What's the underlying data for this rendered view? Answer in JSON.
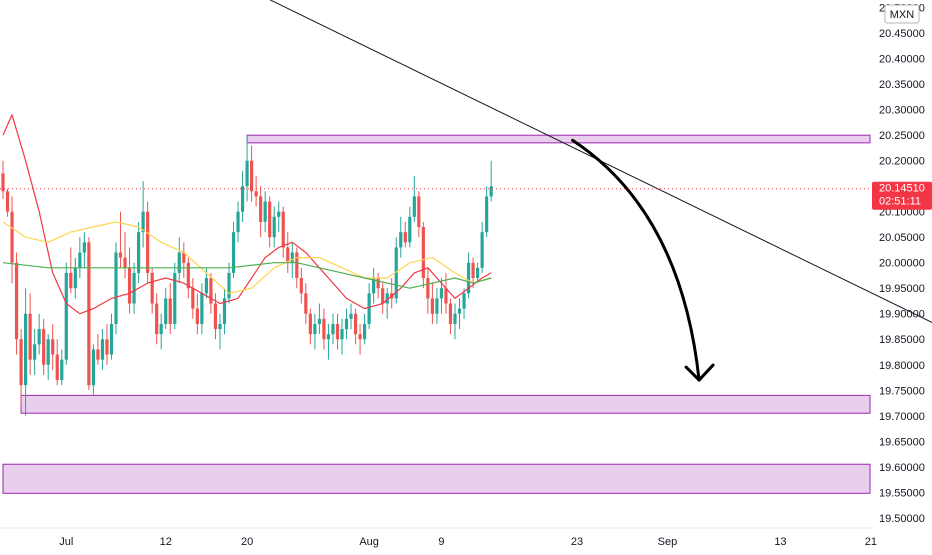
{
  "chart_data": {
    "type": "candlestick",
    "currency": "MXN",
    "ylim": [
      19.48,
      20.515
    ],
    "y_ticks": [
      "19.50000",
      "19.55000",
      "19.60000",
      "19.65000",
      "19.70000",
      "19.75000",
      "19.80000",
      "19.85000",
      "19.90000",
      "19.95000",
      "20.00000",
      "20.05000",
      "20.10000",
      "20.15000",
      "20.20000",
      "20.25000",
      "20.30000",
      "20.35000",
      "20.40000",
      "20.45000",
      "20.50000"
    ],
    "x_labels": [
      {
        "label": "Jul",
        "bar": 14
      },
      {
        "label": "12",
        "bar": 36
      },
      {
        "label": "20",
        "bar": 54
      },
      {
        "label": "Aug",
        "bar": 81
      },
      {
        "label": "9",
        "bar": 97
      },
      {
        "label": "23",
        "bar": 127
      },
      {
        "label": "Sep",
        "bar": 147
      },
      {
        "label": "13",
        "bar": 172
      },
      {
        "label": "21",
        "bar": 192
      }
    ],
    "last_price": {
      "value": 20.1451,
      "label": "20.14510",
      "countdown": "02:51:11"
    },
    "colors": {
      "up": "#26a69a",
      "down": "#ef5350",
      "zone_fill": "#e1bee7",
      "zone_border": "#9c27b0",
      "ma_fast": "#f23645",
      "ma_mid": "#ffd54f",
      "ma_slow": "#4caf50",
      "trendline": "#131722",
      "badge": "#f23645"
    },
    "ohlc": [
      [
        20.175,
        20.2,
        20.125,
        20.14
      ],
      [
        20.14,
        20.145,
        20.09,
        20.1
      ],
      [
        20.1,
        20.13,
        19.96,
        20.0
      ],
      [
        20.0,
        20.02,
        19.82,
        19.85
      ],
      [
        19.85,
        19.87,
        19.72,
        19.76
      ],
      [
        19.76,
        19.95,
        19.7,
        19.9
      ],
      [
        19.9,
        19.94,
        19.78,
        19.81
      ],
      [
        19.81,
        19.87,
        19.78,
        19.84
      ],
      [
        19.84,
        19.9,
        19.82,
        19.87
      ],
      [
        19.87,
        19.89,
        19.78,
        19.8
      ],
      [
        19.8,
        19.86,
        19.77,
        19.85
      ],
      [
        19.85,
        19.88,
        19.79,
        19.82
      ],
      [
        19.82,
        19.85,
        19.76,
        19.77
      ],
      [
        19.77,
        19.83,
        19.76,
        19.81
      ],
      [
        19.81,
        20.0,
        19.8,
        19.98
      ],
      [
        19.98,
        20.03,
        19.94,
        19.95
      ],
      [
        19.95,
        20.01,
        19.93,
        19.99
      ],
      [
        19.99,
        20.05,
        19.97,
        20.02
      ],
      [
        20.02,
        20.06,
        19.99,
        20.04
      ],
      [
        20.04,
        20.05,
        19.75,
        19.76
      ],
      [
        19.76,
        19.84,
        19.74,
        19.83
      ],
      [
        19.83,
        19.86,
        19.8,
        19.81
      ],
      [
        19.81,
        19.87,
        19.79,
        19.85
      ],
      [
        19.85,
        19.88,
        19.8,
        19.82
      ],
      [
        19.82,
        19.9,
        19.81,
        19.88
      ],
      [
        19.88,
        20.04,
        19.86,
        20.02
      ],
      [
        20.02,
        20.1,
        19.99,
        20.01
      ],
      [
        20.01,
        20.06,
        19.97,
        19.99
      ],
      [
        19.99,
        20.03,
        19.9,
        19.92
      ],
      [
        19.92,
        20.0,
        19.9,
        19.98
      ],
      [
        19.98,
        20.08,
        19.96,
        20.06
      ],
      [
        20.06,
        20.16,
        20.03,
        20.1
      ],
      [
        20.1,
        20.12,
        19.96,
        19.98
      ],
      [
        19.98,
        19.99,
        19.9,
        19.92
      ],
      [
        19.92,
        19.94,
        19.84,
        19.86
      ],
      [
        19.86,
        19.9,
        19.83,
        19.88
      ],
      [
        19.88,
        19.95,
        19.87,
        19.93
      ],
      [
        19.93,
        19.96,
        19.86,
        19.88
      ],
      [
        19.88,
        20.0,
        19.87,
        19.98
      ],
      [
        19.98,
        20.05,
        19.96,
        20.02
      ],
      [
        20.02,
        20.04,
        19.97,
        20.0
      ],
      [
        20.0,
        20.01,
        19.93,
        19.95
      ],
      [
        19.95,
        19.97,
        19.89,
        19.91
      ],
      [
        19.91,
        19.94,
        19.86,
        19.88
      ],
      [
        19.88,
        19.96,
        19.86,
        19.94
      ],
      [
        19.94,
        19.99,
        19.93,
        19.97
      ],
      [
        19.97,
        19.98,
        19.9,
        19.92
      ],
      [
        19.92,
        19.94,
        19.85,
        19.87
      ],
      [
        19.87,
        19.9,
        19.83,
        19.88
      ],
      [
        19.88,
        19.95,
        19.86,
        19.93
      ],
      [
        19.93,
        20.0,
        19.92,
        19.98
      ],
      [
        19.98,
        20.08,
        19.97,
        20.06
      ],
      [
        20.06,
        20.12,
        20.04,
        20.1
      ],
      [
        20.1,
        20.18,
        20.08,
        20.15
      ],
      [
        20.15,
        20.25,
        20.12,
        20.2
      ],
      [
        20.2,
        20.23,
        20.12,
        20.14
      ],
      [
        20.14,
        20.17,
        20.11,
        20.13
      ],
      [
        20.13,
        20.15,
        20.05,
        20.08
      ],
      [
        20.08,
        20.14,
        20.06,
        20.12
      ],
      [
        20.12,
        20.13,
        20.03,
        20.05
      ],
      [
        20.05,
        20.11,
        20.03,
        20.09
      ],
      [
        20.09,
        20.12,
        20.06,
        20.1
      ],
      [
        20.1,
        20.11,
        20.01,
        20.03
      ],
      [
        20.03,
        20.06,
        19.98,
        20.0
      ],
      [
        20.0,
        20.04,
        19.97,
        20.02
      ],
      [
        20.02,
        20.03,
        19.95,
        19.97
      ],
      [
        19.97,
        19.99,
        19.92,
        19.94
      ],
      [
        19.94,
        19.96,
        19.88,
        19.9
      ],
      [
        19.9,
        19.91,
        19.84,
        19.86
      ],
      [
        19.86,
        19.9,
        19.83,
        19.88
      ],
      [
        19.88,
        19.92,
        19.86,
        19.89
      ],
      [
        19.89,
        19.91,
        19.83,
        19.85
      ],
      [
        19.85,
        19.88,
        19.81,
        19.86
      ],
      [
        19.86,
        19.9,
        19.84,
        19.88
      ],
      [
        19.88,
        19.9,
        19.83,
        19.85
      ],
      [
        19.85,
        19.89,
        19.82,
        19.87
      ],
      [
        19.87,
        19.91,
        19.85,
        19.89
      ],
      [
        19.89,
        19.92,
        19.87,
        19.9
      ],
      [
        19.9,
        19.91,
        19.84,
        19.86
      ],
      [
        19.86,
        19.88,
        19.82,
        19.85
      ],
      [
        19.85,
        19.9,
        19.84,
        19.88
      ],
      [
        19.88,
        19.96,
        19.87,
        19.94
      ],
      [
        19.94,
        19.99,
        19.92,
        19.97
      ],
      [
        19.97,
        19.98,
        19.93,
        19.95
      ],
      [
        19.95,
        19.96,
        19.9,
        19.92
      ],
      [
        19.92,
        19.95,
        19.89,
        19.94
      ],
      [
        19.94,
        19.97,
        19.91,
        19.93
      ],
      [
        19.93,
        20.05,
        19.92,
        20.03
      ],
      [
        20.03,
        20.09,
        20.01,
        20.06
      ],
      [
        20.06,
        20.08,
        20.03,
        20.04
      ],
      [
        20.04,
        20.11,
        20.03,
        20.09
      ],
      [
        20.09,
        20.17,
        20.08,
        20.13
      ],
      [
        20.13,
        20.14,
        20.05,
        20.07
      ],
      [
        20.07,
        20.08,
        19.95,
        19.97
      ],
      [
        19.97,
        19.99,
        19.9,
        19.93
      ],
      [
        19.93,
        19.96,
        19.88,
        19.9
      ],
      [
        19.9,
        19.95,
        19.88,
        19.93
      ],
      [
        19.93,
        19.97,
        19.9,
        19.95
      ],
      [
        19.95,
        19.98,
        19.9,
        19.92
      ],
      [
        19.92,
        19.93,
        19.86,
        19.88
      ],
      [
        19.88,
        19.92,
        19.85,
        19.9
      ],
      [
        19.9,
        19.93,
        19.87,
        19.91
      ],
      [
        19.91,
        19.95,
        19.89,
        19.94
      ],
      [
        19.94,
        20.02,
        19.93,
        20.0
      ],
      [
        20.0,
        20.01,
        19.95,
        19.97
      ],
      [
        19.97,
        20.0,
        19.96,
        19.99
      ],
      [
        19.99,
        20.08,
        19.98,
        20.06
      ],
      [
        20.06,
        20.15,
        20.05,
        20.13
      ],
      [
        20.13,
        20.2,
        20.12,
        20.15
      ]
    ],
    "moving_averages": [
      {
        "name": "",
        "color": "#f23645",
        "points": [
          [
            0,
            20.25
          ],
          [
            2,
            20.29
          ],
          [
            5,
            20.2
          ],
          [
            8,
            20.1
          ],
          [
            11,
            19.98
          ],
          [
            14,
            19.92
          ],
          [
            17,
            19.9
          ],
          [
            20,
            19.91
          ],
          [
            24,
            19.93
          ],
          [
            28,
            19.94
          ],
          [
            32,
            19.96
          ],
          [
            36,
            19.97
          ],
          [
            40,
            19.96
          ],
          [
            44,
            19.94
          ],
          [
            48,
            19.92
          ],
          [
            52,
            19.93
          ],
          [
            55,
            19.97
          ],
          [
            58,
            20.01
          ],
          [
            61,
            20.03
          ],
          [
            64,
            20.04
          ],
          [
            67,
            20.02
          ],
          [
            70,
            19.99
          ],
          [
            73,
            19.96
          ],
          [
            76,
            19.93
          ],
          [
            80,
            19.91
          ],
          [
            84,
            19.92
          ],
          [
            88,
            19.95
          ],
          [
            91,
            19.98
          ],
          [
            94,
            19.99
          ],
          [
            97,
            19.96
          ],
          [
            100,
            19.93
          ],
          [
            103,
            19.95
          ],
          [
            106,
            19.97
          ],
          [
            108,
            19.98
          ]
        ]
      },
      {
        "name": "",
        "color": "#ffd54f",
        "points": [
          [
            0,
            20.08
          ],
          [
            5,
            20.05
          ],
          [
            10,
            20.04
          ],
          [
            15,
            20.06
          ],
          [
            20,
            20.07
          ],
          [
            25,
            20.08
          ],
          [
            30,
            20.07
          ],
          [
            35,
            20.04
          ],
          [
            40,
            20.02
          ],
          [
            45,
            19.98
          ],
          [
            50,
            19.94
          ],
          [
            55,
            19.95
          ],
          [
            60,
            19.99
          ],
          [
            65,
            20.01
          ],
          [
            70,
            20.01
          ],
          [
            75,
            19.99
          ],
          [
            80,
            19.97
          ],
          [
            85,
            19.97
          ],
          [
            90,
            20.0
          ],
          [
            95,
            20.01
          ],
          [
            100,
            19.98
          ],
          [
            104,
            19.96
          ],
          [
            108,
            19.97
          ]
        ]
      },
      {
        "name": "",
        "color": "#4caf50",
        "points": [
          [
            0,
            20.0
          ],
          [
            10,
            19.99
          ],
          [
            20,
            19.99
          ],
          [
            30,
            19.99
          ],
          [
            40,
            19.99
          ],
          [
            50,
            19.99
          ],
          [
            60,
            20.0
          ],
          [
            65,
            20.0
          ],
          [
            70,
            19.99
          ],
          [
            75,
            19.98
          ],
          [
            80,
            19.97
          ],
          [
            85,
            19.96
          ],
          [
            90,
            19.95
          ],
          [
            95,
            19.96
          ],
          [
            100,
            19.97
          ],
          [
            104,
            19.96
          ],
          [
            108,
            19.97
          ]
        ]
      }
    ],
    "zones": [
      {
        "bar_start": 54,
        "bar_end": 205,
        "top": 20.25,
        "bottom": 20.235
      },
      {
        "bar_start": 4,
        "bar_end": 212,
        "top": 19.74,
        "bottom": 19.705
      },
      {
        "bar_start": 0,
        "bar_end": 212,
        "top": 19.605,
        "bottom": 19.548
      }
    ],
    "trendline": {
      "start": [
        36,
        20.615
      ],
      "end": [
        212,
        19.855
      ]
    },
    "arrow": {
      "start": [
        126,
        20.24
      ],
      "control": [
        150,
        20.1
      ],
      "end": [
        154,
        19.77
      ]
    }
  }
}
